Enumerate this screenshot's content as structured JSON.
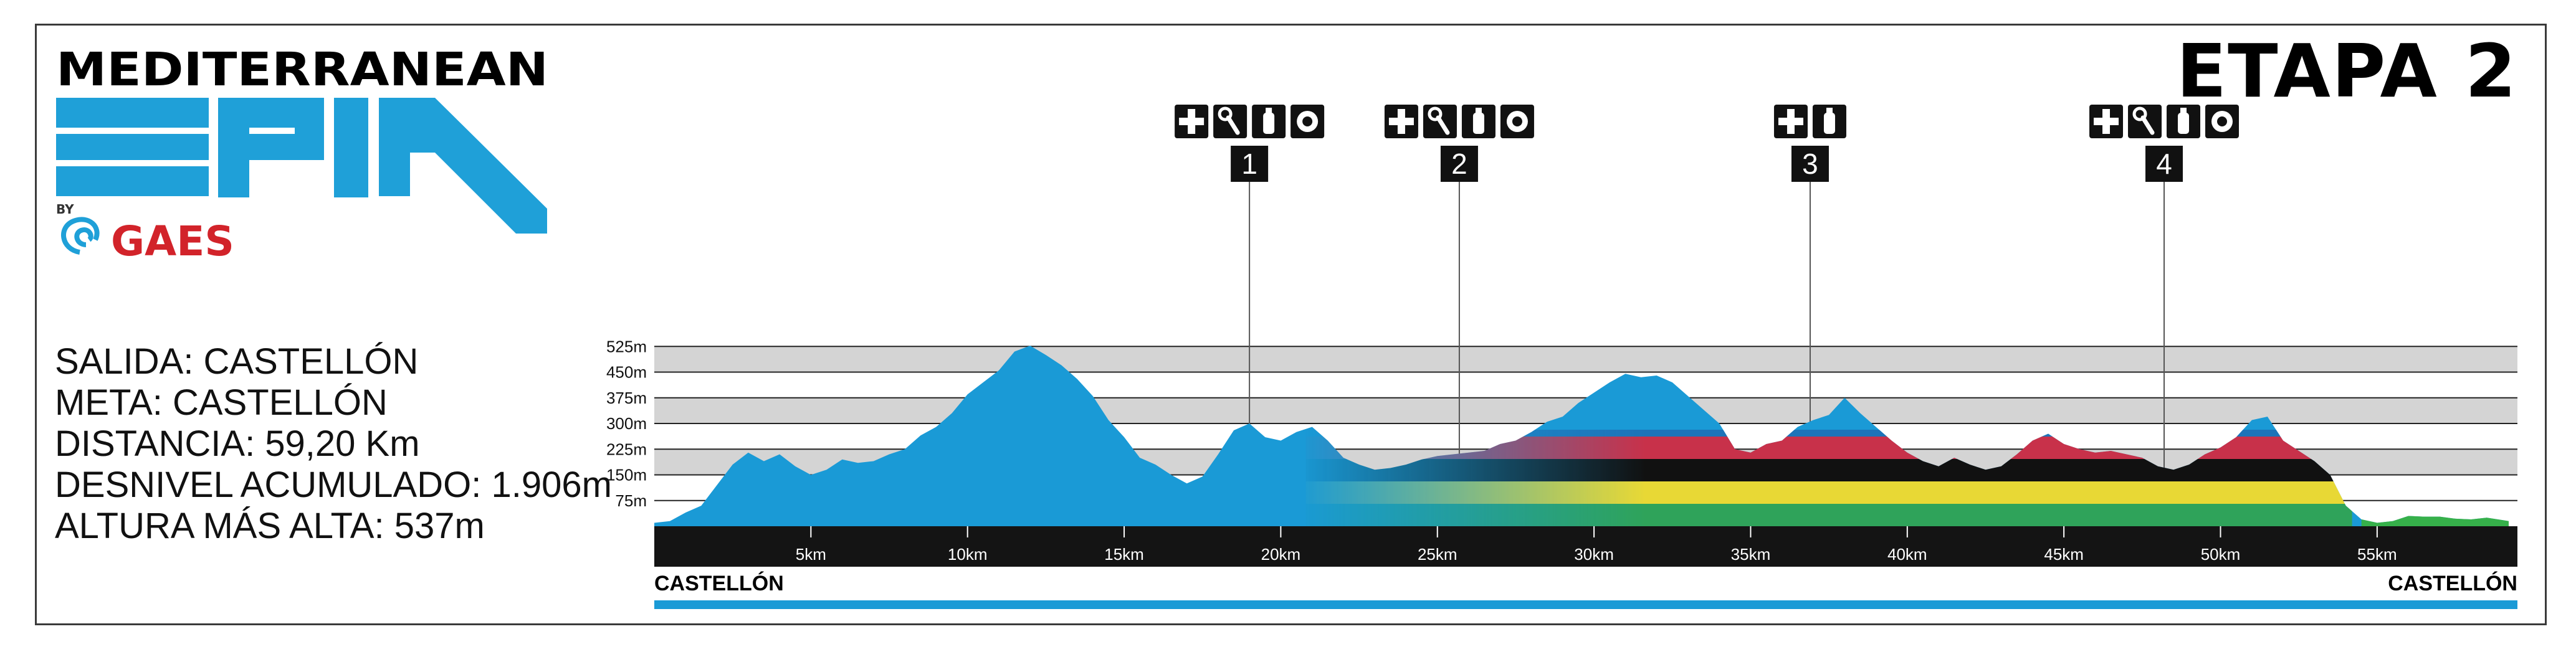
{
  "brand": {
    "title": "MEDITERRANEAN",
    "sub": "EPIC",
    "by": "BY",
    "sponsor": "GAES",
    "color_blue": "#1fa0d8",
    "color_red": "#d2232a"
  },
  "stage": "ETAPA 2",
  "info": [
    "SALIDA: CASTELLÓN",
    "META: CASTELLÓN",
    "DISTANCIA: 59,20 Km",
    "DESNIVEL ACUMULADO: 1.906m",
    "ALTURA MÁS ALTA: 537m"
  ],
  "chart_data": {
    "type": "area",
    "title": "",
    "xlabel": "",
    "ylabel": "",
    "xlim": [
      0,
      59.2
    ],
    "ylim": [
      0,
      600
    ],
    "y_ticks": [
      75,
      150,
      225,
      300,
      375,
      450,
      525
    ],
    "y_tick_labels": [
      "75m",
      "150m",
      "225m",
      "300m",
      "375m",
      "450m",
      "525m"
    ],
    "x_ticks": [
      5,
      10,
      15,
      20,
      25,
      30,
      35,
      40,
      45,
      50,
      55
    ],
    "x_tick_labels": [
      "5km",
      "10km",
      "15km",
      "20km",
      "25km",
      "30km",
      "35km",
      "40km",
      "45km",
      "50km",
      "55km"
    ],
    "start_label": "CASTELLÓN",
    "end_label": "CASTELLÓN",
    "fill_color": "#1a9ad6",
    "end_fill_color": "#36b04a",
    "band_color": "#d4d4d4",
    "stripe_colors": [
      "#1e73b8",
      "#c8314a",
      "#111111",
      "#e8d835",
      "#2fa35a"
    ],
    "series": [
      {
        "x": [
          0,
          0.5,
          1,
          1.5,
          2,
          2.5,
          3,
          3.5,
          4,
          4.5,
          5,
          5.5,
          6,
          6.5,
          7,
          7.5,
          8,
          8.5,
          9,
          9.5,
          10,
          10.5,
          11,
          11.5,
          12,
          12.5,
          13,
          13.5,
          14,
          14.5,
          15,
          15.5,
          16,
          16.5,
          17,
          17.5,
          18,
          18.5,
          19,
          19.5,
          20,
          20.5,
          21,
          21.5,
          22,
          22.5,
          23,
          23.5,
          24,
          24.5,
          25,
          25.5,
          26,
          26.5,
          27,
          27.5,
          28,
          28.5,
          29,
          29.5,
          30,
          30.5,
          31,
          31.5,
          32,
          32.5,
          33,
          33.5,
          34,
          34.5,
          35,
          35.5,
          36,
          36.5,
          37,
          37.5,
          38,
          38.5,
          39,
          39.5,
          40,
          40.5,
          41,
          41.5,
          42,
          42.5,
          43,
          43.5,
          44,
          44.5,
          45,
          45.5,
          46,
          46.5,
          47,
          47.5,
          48,
          48.5,
          49,
          49.5,
          50,
          50.5,
          51,
          51.5,
          52,
          52.5,
          53,
          53.5,
          54,
          54.5,
          55,
          55.5,
          56,
          56.5,
          57,
          57.5,
          58,
          58.5,
          59,
          59.2
        ],
        "y": [
          10,
          15,
          40,
          60,
          120,
          180,
          215,
          190,
          210,
          175,
          150,
          165,
          195,
          185,
          190,
          210,
          225,
          265,
          290,
          330,
          385,
          420,
          455,
          510,
          527,
          500,
          470,
          430,
          380,
          310,
          260,
          200,
          180,
          150,
          125,
          145,
          210,
          280,
          300,
          260,
          250,
          275,
          290,
          250,
          200,
          180,
          165,
          170,
          180,
          195,
          205,
          210,
          215,
          220,
          240,
          250,
          275,
          305,
          320,
          360,
          390,
          420,
          445,
          435,
          440,
          420,
          380,
          340,
          300,
          225,
          215,
          240,
          250,
          290,
          310,
          325,
          375,
          330,
          290,
          250,
          215,
          190,
          175,
          200,
          180,
          165,
          175,
          210,
          250,
          270,
          240,
          225,
          215,
          220,
          210,
          200,
          175,
          165,
          180,
          210,
          230,
          260,
          310,
          320,
          250,
          220,
          190,
          150,
          60,
          20,
          10,
          15,
          30,
          28,
          28,
          22,
          20,
          25,
          18,
          15
        ]
      }
    ],
    "checkpoints": [
      {
        "label": "1",
        "km": 19,
        "icons": [
          "first-aid",
          "tools",
          "water",
          "food"
        ]
      },
      {
        "label": "2",
        "km": 25.7,
        "icons": [
          "first-aid",
          "tools",
          "water",
          "food"
        ]
      },
      {
        "label": "3",
        "km": 36.9,
        "icons": [
          "first-aid",
          "water"
        ]
      },
      {
        "label": "4",
        "km": 48.2,
        "icons": [
          "first-aid",
          "tools",
          "water",
          "food"
        ]
      }
    ]
  }
}
